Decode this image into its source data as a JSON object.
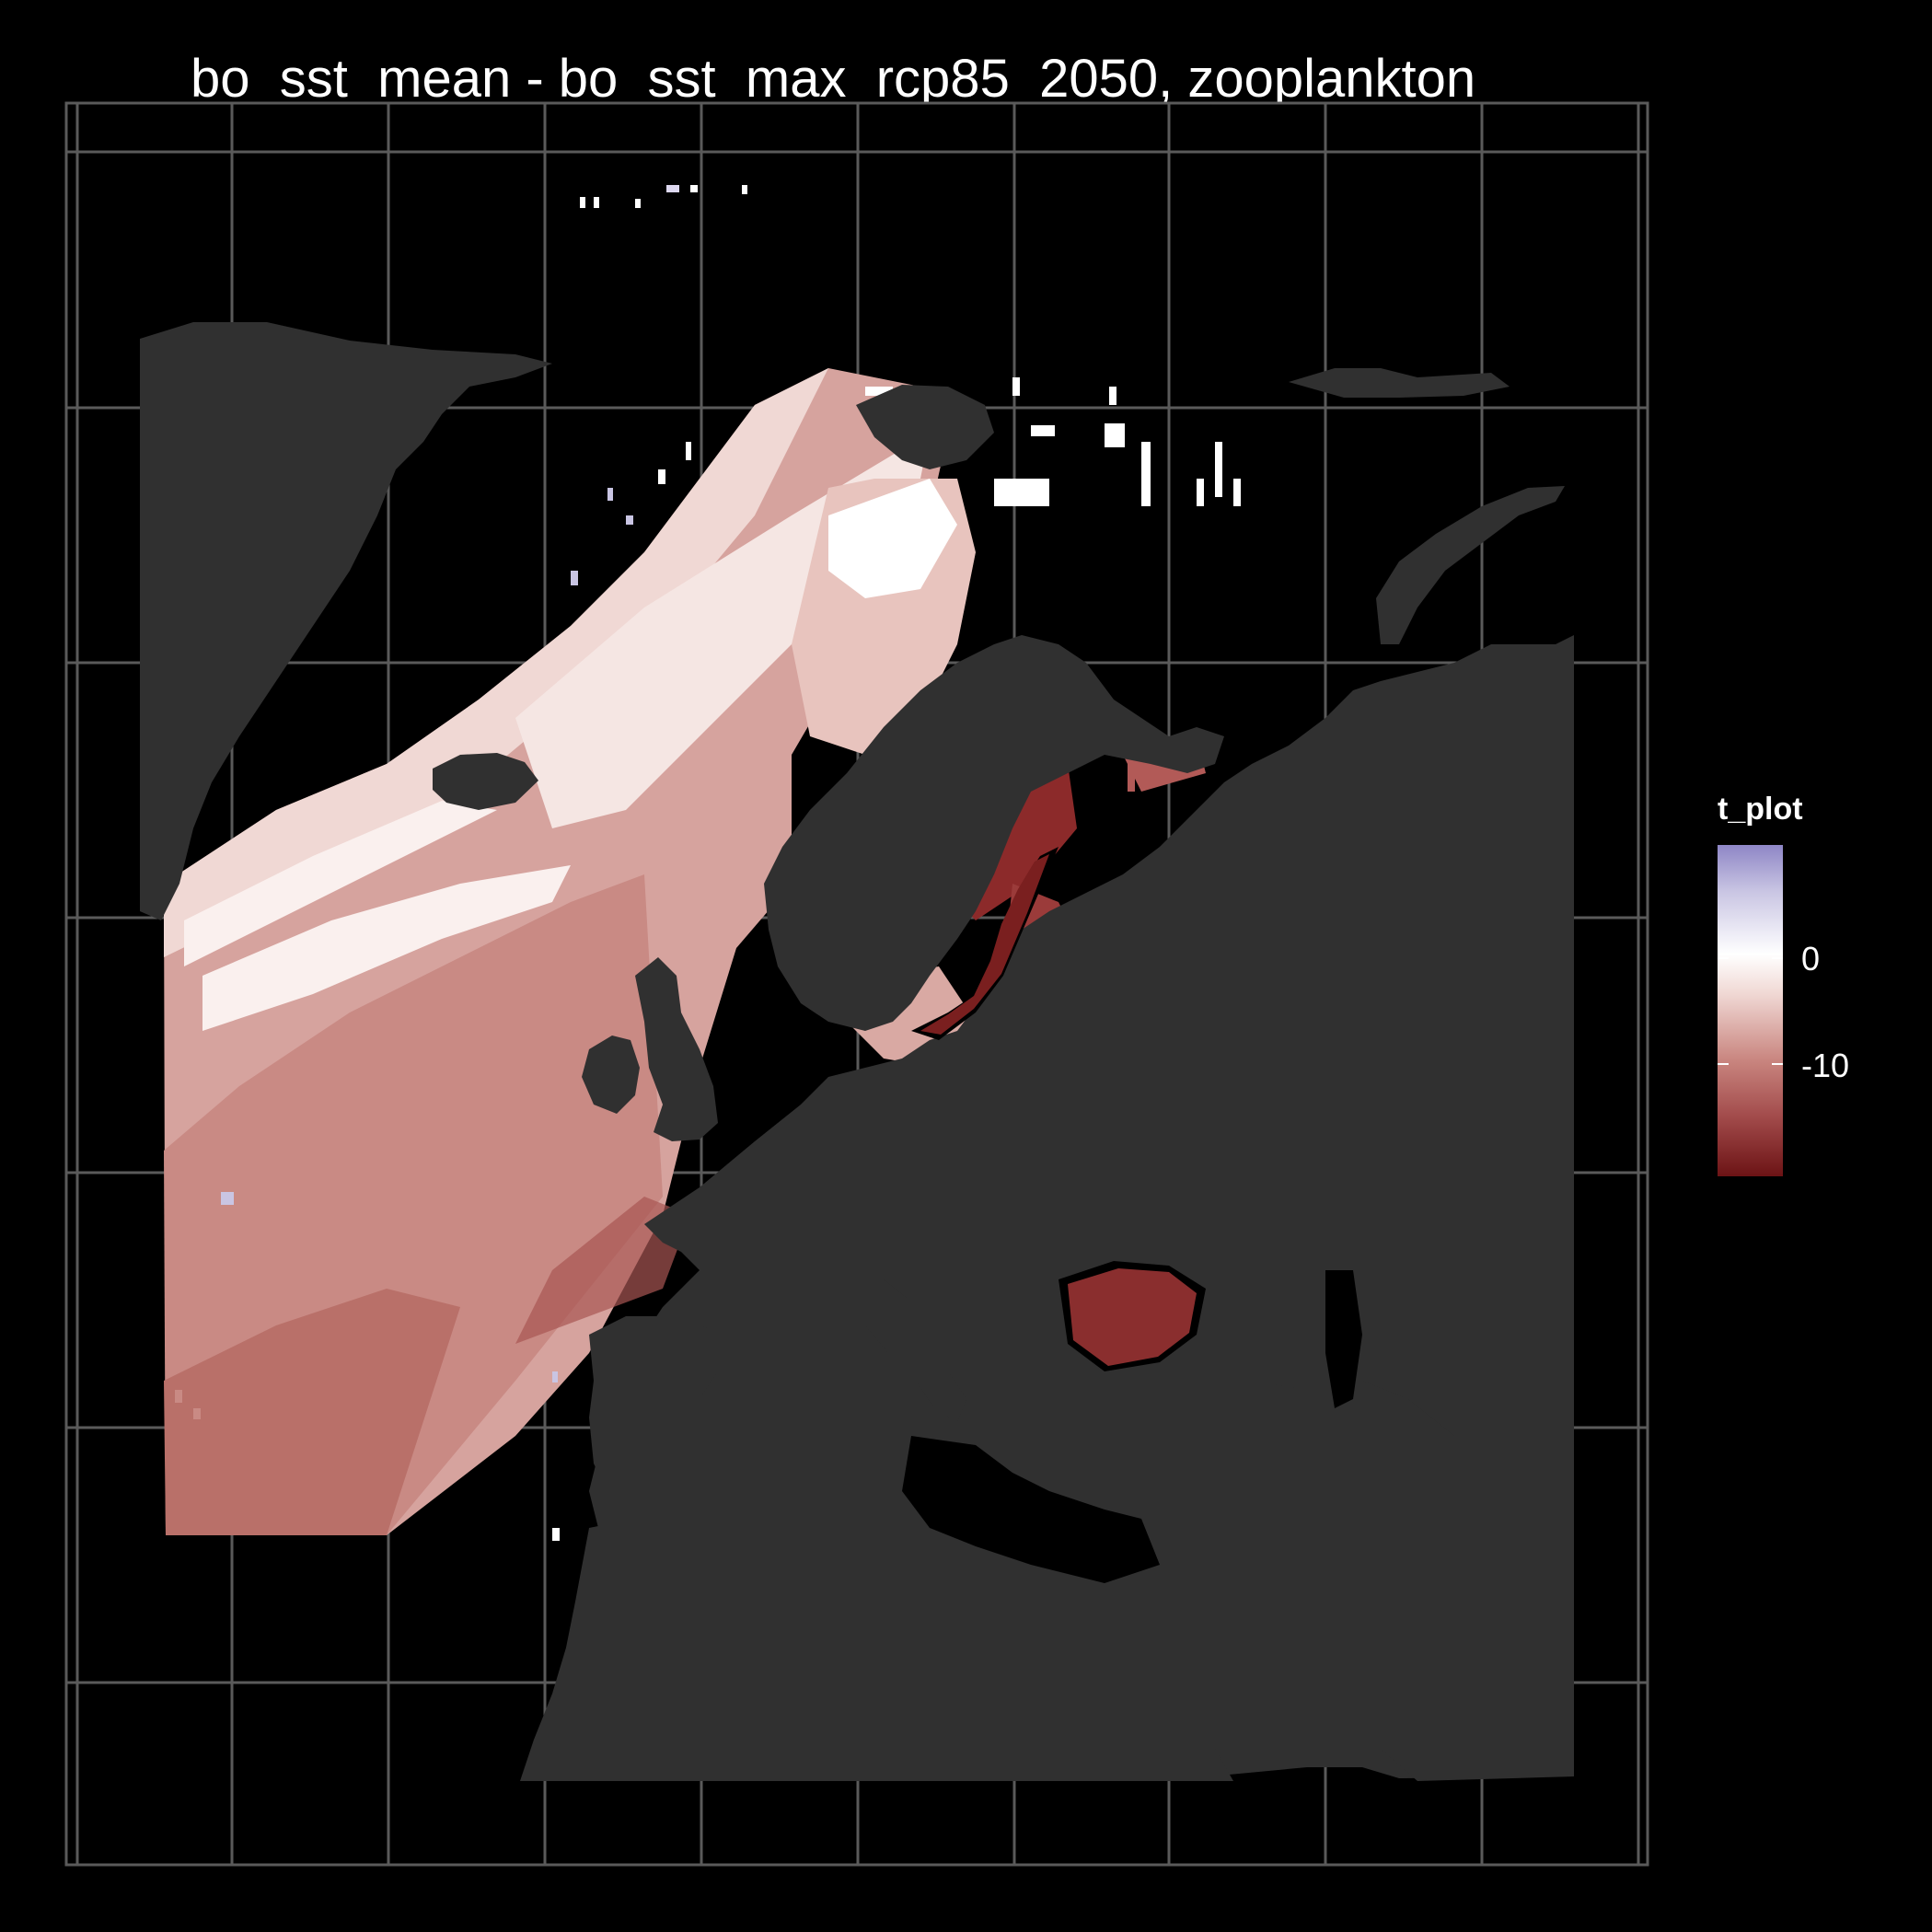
{
  "title": "bo_sst_mean - bo_sst_max_rcp85_2050, zooplankton",
  "legend": {
    "title": "t_plot",
    "ticks": [
      {
        "label": "0",
        "value": 0
      },
      {
        "label": "-10",
        "value": -10
      }
    ],
    "colors": {
      "high": "#8e86c6",
      "zero": "#ffffff",
      "low": "#6c1315"
    }
  },
  "map": {
    "background": "#000000",
    "land_color": "#303030",
    "graticule_color": "#5a5a5a",
    "regions": [
      "Greenland",
      "Iceland",
      "Svalbard",
      "Novaya Zemlya",
      "Scandinavia",
      "Europe",
      "British Isles",
      "North Africa",
      "Middle East"
    ]
  }
}
